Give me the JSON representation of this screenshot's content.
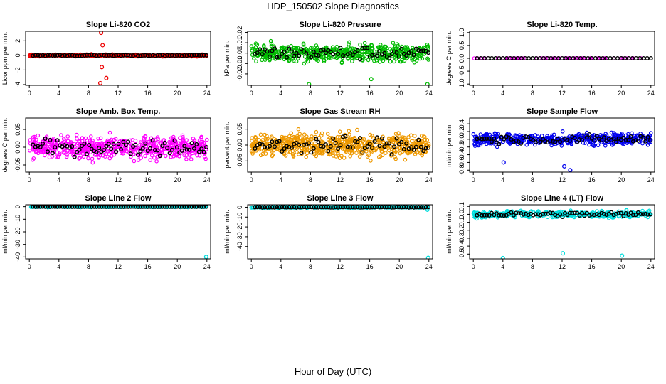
{
  "title": "HDP_150502  Slope Diagnostics",
  "xlabel": "Hour of Day (UTC)",
  "colors": {
    "ref": "#000000"
  },
  "chart_data": [
    {
      "type": "scatter",
      "title": "Slope Li-820 CO2",
      "ylabel": "Licor ppm per min.",
      "xlim": [
        -0.5,
        24.5
      ],
      "ylim": [
        -4.1,
        3.3
      ],
      "yticks": [
        -4,
        -2,
        0,
        2
      ],
      "ytick_labels": [
        "-4",
        "-2",
        "0",
        "2"
      ],
      "xticks": [
        0,
        4,
        8,
        12,
        16,
        20,
        24
      ],
      "xtick_labels": [
        "0",
        "4",
        "8",
        "12",
        "16",
        "20",
        "24"
      ],
      "color": "#ee0000",
      "noise": 0.13,
      "ref_noise": 0.08,
      "density": 340,
      "ref_every": 0.33,
      "outliers": [
        [
          9.7,
          3.1
        ],
        [
          9.9,
          1.4
        ],
        [
          9.8,
          -1.6
        ],
        [
          10.4,
          -3.1
        ],
        [
          9.6,
          -3.8
        ]
      ]
    },
    {
      "type": "scatter",
      "title": "Slope Li-820 Pressure",
      "ylabel": "kPa per min.",
      "xlim": [
        -0.5,
        24.5
      ],
      "ylim": [
        -0.031,
        0.021
      ],
      "yticks": [
        -0.02,
        -0.01,
        0.0,
        0.01,
        0.02
      ],
      "ytick_labels": [
        "-0.02",
        "-0.01",
        "0.00",
        "0.01",
        "0.02"
      ],
      "xticks": [
        0,
        4,
        8,
        12,
        16,
        20,
        24
      ],
      "xtick_labels": [
        "0",
        "4",
        "8",
        "12",
        "16",
        "20",
        "24"
      ],
      "color": "#00bb00",
      "noise": 0.008,
      "ref_noise": 0.006,
      "density": 520,
      "ref_every": 0.33,
      "outliers": [
        [
          7.8,
          -0.03
        ],
        [
          23.8,
          -0.03
        ],
        [
          16.2,
          -0.025
        ]
      ]
    },
    {
      "type": "scatter",
      "title": "Slope Li-820 Temp.",
      "ylabel": "degrees C per min.",
      "xlim": [
        -0.5,
        24.5
      ],
      "ylim": [
        -1.05,
        1.05
      ],
      "yticks": [
        -1.0,
        -0.5,
        0.0,
        0.5,
        1.0
      ],
      "ytick_labels": [
        "-1.0",
        "-0.5",
        "0.0",
        "0.5",
        "1.0"
      ],
      "xticks": [
        0,
        4,
        8,
        12,
        16,
        20,
        24
      ],
      "xtick_labels": [
        "0",
        "4",
        "8",
        "12",
        "16",
        "20",
        "24"
      ],
      "color": "#ff00ff",
      "noise": 0.0,
      "ref_noise": 0.0,
      "density": 70,
      "ref_every": 0.5,
      "outliers": []
    },
    {
      "type": "scatter",
      "title": "Slope Amb. Box Temp.",
      "ylabel": "degrees C per min.",
      "xlim": [
        -0.5,
        24.5
      ],
      "ylim": [
        -0.07,
        0.082
      ],
      "yticks": [
        -0.05,
        0.0,
        0.05
      ],
      "ytick_labels": [
        "-0.05",
        "0.00",
        "0.05"
      ],
      "xticks": [
        0,
        4,
        8,
        12,
        16,
        20,
        24
      ],
      "xtick_labels": [
        "0",
        "4",
        "8",
        "12",
        "16",
        "20",
        "24"
      ],
      "color": "#ff00ff",
      "noise": 0.03,
      "ref_noise": 0.022,
      "density": 560,
      "ref_every": 0.33,
      "outliers": []
    },
    {
      "type": "scatter",
      "title": "Slope Gas Stream RH",
      "ylabel": "percent per min.",
      "xlim": [
        -0.5,
        24.5
      ],
      "ylim": [
        -0.085,
        0.085
      ],
      "yticks": [
        -0.05,
        0.0,
        0.05
      ],
      "ytick_labels": [
        "-0.05",
        "0.00",
        "0.05"
      ],
      "xticks": [
        0,
        4,
        8,
        12,
        16,
        20,
        24
      ],
      "xtick_labels": [
        "0",
        "4",
        "8",
        "12",
        "16",
        "20",
        "24"
      ],
      "color": "#ee9900",
      "noise": 0.035,
      "ref_noise": 0.025,
      "density": 620,
      "ref_every": 0.33,
      "outliers": []
    },
    {
      "type": "scatter",
      "title": "Slope Sample Flow",
      "ylabel": "ml/min per min.",
      "xlim": [
        -0.5,
        24.5
      ],
      "ylim": [
        -0.85,
        0.55
      ],
      "yticks": [
        -0.8,
        -0.6,
        -0.4,
        -0.2,
        0.0,
        0.2,
        0.4
      ],
      "ytick_labels": [
        "-0.8",
        "-0.6",
        "-0.4",
        "-0.2",
        "0.0",
        "0.2",
        "0.4"
      ],
      "xticks": [
        0,
        4,
        8,
        12,
        16,
        20,
        24
      ],
      "xtick_labels": [
        "0",
        "4",
        "8",
        "12",
        "16",
        "20",
        "24"
      ],
      "color": "#0000ee",
      "noise": 0.15,
      "ref_noise": 0.1,
      "density": 460,
      "ref_every": 0.33,
      "outliers": [
        [
          12.3,
          -0.7
        ],
        [
          13.1,
          -0.8
        ],
        [
          4.1,
          -0.6
        ]
      ]
    },
    {
      "type": "scatter",
      "title": "Slope Line 2 Flow",
      "ylabel": "ml/min per min.",
      "xlim": [
        -0.5,
        24.5
      ],
      "ylim": [
        -41.5,
        1.5
      ],
      "yticks": [
        -40,
        -30,
        -20,
        -10,
        0
      ],
      "ytick_labels": [
        "-40",
        "-30",
        "-20",
        "-10",
        "0"
      ],
      "xticks": [
        0,
        4,
        8,
        12,
        16,
        20,
        24
      ],
      "xtick_labels": [
        "0",
        "4",
        "8",
        "12",
        "16",
        "20",
        "24"
      ],
      "color": "#00dddd",
      "noise": 0.4,
      "ref_noise": 0.1,
      "density": 320,
      "ref_every": 0.33,
      "outliers": [
        [
          23.9,
          -40
        ]
      ]
    },
    {
      "type": "scatter",
      "title": "Slope Line 3 Flow",
      "ylabel": "ml/min per min.",
      "xlim": [
        -0.5,
        24.5
      ],
      "ylim": [
        -52.5,
        2.5
      ],
      "yticks": [
        -40,
        -30,
        -20,
        -10,
        0
      ],
      "ytick_labels": [
        "-40",
        "-30",
        "-20",
        "-10",
        "0"
      ],
      "xticks": [
        0,
        4,
        8,
        12,
        16,
        20,
        24
      ],
      "xtick_labels": [
        "0",
        "4",
        "8",
        "12",
        "16",
        "20",
        "24"
      ],
      "color": "#00dddd",
      "noise": 0.6,
      "ref_noise": 0.3,
      "density": 320,
      "ref_every": 0.33,
      "outliers": [
        [
          23.9,
          -51.5
        ],
        [
          23.8,
          -2.5
        ]
      ]
    },
    {
      "type": "scatter",
      "title": "Slope Line 4 (LT) Flow",
      "ylabel": "ml/min per min.",
      "xlim": [
        -0.5,
        24.5
      ],
      "ylim": [
        -0.56,
        0.12
      ],
      "yticks": [
        -0.5,
        -0.4,
        -0.3,
        -0.2,
        -0.1,
        0.0,
        0.1
      ],
      "ytick_labels": [
        "-0.5",
        "-0.4",
        "-0.3",
        "-0.2",
        "-0.1",
        "0.0",
        "0.1"
      ],
      "xticks": [
        0,
        4,
        8,
        12,
        16,
        20,
        24
      ],
      "xtick_labels": [
        "0",
        "4",
        "8",
        "12",
        "16",
        "20",
        "24"
      ],
      "color": "#00dddd",
      "noise": 0.04,
      "ref_noise": 0.03,
      "density": 360,
      "ref_every": 0.33,
      "outliers": [
        [
          4.0,
          -0.55
        ],
        [
          12.1,
          -0.49
        ],
        [
          20.1,
          -0.52
        ]
      ]
    }
  ]
}
